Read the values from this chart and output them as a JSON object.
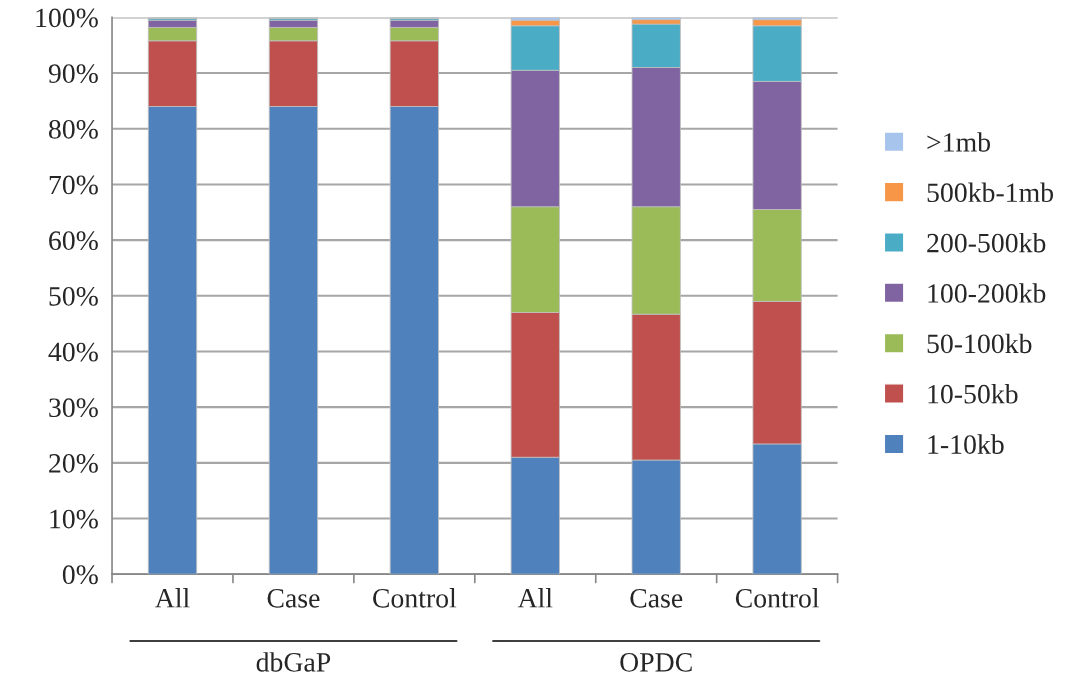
{
  "chart_data": {
    "type": "bar",
    "stacked": true,
    "categories": [
      "All",
      "Case",
      "Control",
      "All",
      "Case",
      "Control"
    ],
    "annotations": [
      "dbGaP",
      "OPDC"
    ],
    "series": [
      {
        "name": "1-10kb",
        "color": "#4f81bd",
        "values": [
          84,
          84,
          84,
          21,
          20.5,
          23.4
        ]
      },
      {
        "name": "10-50kb",
        "color": "#c0504d",
        "values": [
          11.8,
          11.8,
          11.8,
          26,
          26.2,
          25.6
        ]
      },
      {
        "name": "50-100kb",
        "color": "#9bbb59",
        "values": [
          2.4,
          2.4,
          2.4,
          19,
          19.3,
          16.5
        ]
      },
      {
        "name": "100-200kb",
        "color": "#8064a2",
        "values": [
          1.3,
          1.3,
          1.3,
          24.5,
          25,
          23
        ]
      },
      {
        "name": "200-500kb",
        "color": "#4bacc6",
        "values": [
          0.3,
          0.3,
          0.3,
          8,
          7.8,
          10
        ]
      },
      {
        "name": "500kb-1mb",
        "color": "#f79646",
        "values": [
          0.1,
          0.1,
          0.1,
          1,
          0.8,
          1.1
        ]
      },
      {
        "name": ">1mb",
        "color": "#a7c4ec",
        "values": [
          0.1,
          0.1,
          0.1,
          0.5,
          0.4,
          0.4
        ]
      }
    ],
    "ylim": [
      0,
      100
    ],
    "yticks": [
      {
        "value": 0,
        "label": "0%"
      },
      {
        "value": 10,
        "label": "10%"
      },
      {
        "value": 20,
        "label": "20%"
      },
      {
        "value": 30,
        "label": "30%"
      },
      {
        "value": 40,
        "label": "40%"
      },
      {
        "value": 50,
        "label": "50%"
      },
      {
        "value": 60,
        "label": "60%"
      },
      {
        "value": 70,
        "label": "70%"
      },
      {
        "value": 80,
        "label": "80%"
      },
      {
        "value": 90,
        "label": "90%"
      },
      {
        "value": 100,
        "label": "100%"
      }
    ],
    "grid": "y",
    "legend": "right"
  }
}
